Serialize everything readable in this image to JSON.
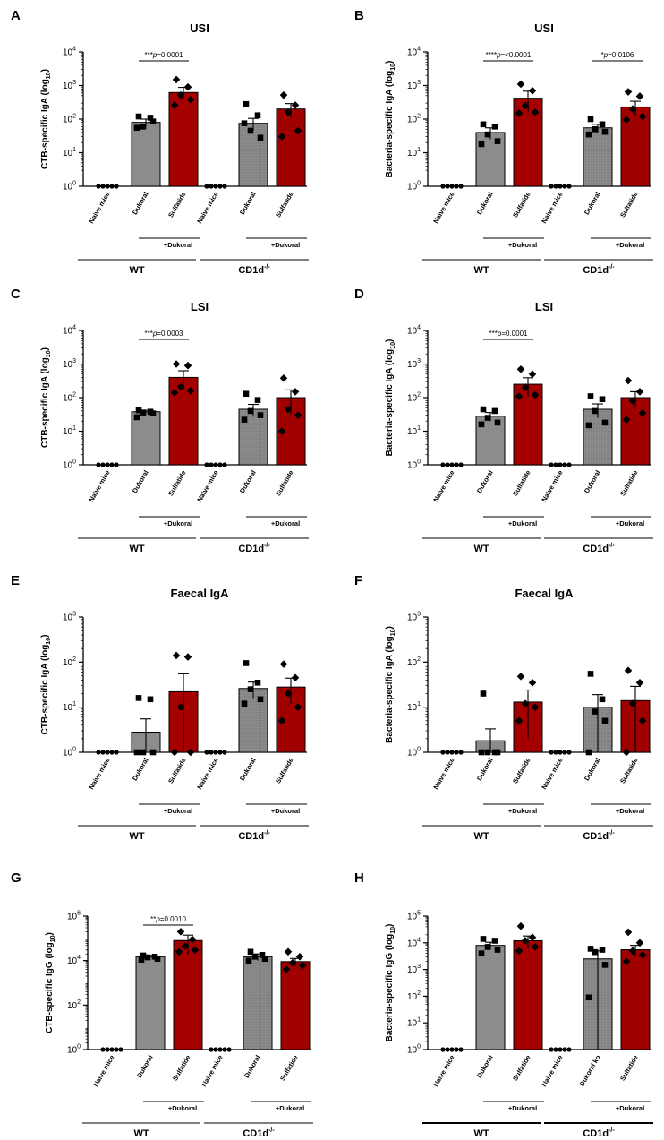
{
  "chart_data": [
    {
      "panel": "A",
      "type": "bar",
      "title": "USI",
      "ylabel": "CTB-specific IgA (log10)",
      "yscale": "log",
      "ylim": [
        1,
        10000
      ],
      "yticks": [
        {
          "base": "10",
          "exp": "0"
        },
        {
          "base": "10",
          "exp": "1"
        },
        {
          "base": "10",
          "exp": "2"
        },
        {
          "base": "10",
          "exp": "3"
        },
        {
          "base": "10",
          "exp": "4"
        }
      ],
      "categories": [
        "Naive mice",
        "Dukoral",
        "Sulfatide",
        "Naive mice",
        "Dukoral",
        "Sulfatide"
      ],
      "values": [
        1,
        80,
        620,
        1,
        75,
        200
      ],
      "errors": [
        0,
        20,
        260,
        0,
        30,
        90
      ],
      "points": [
        [
          1,
          1,
          1,
          1,
          1
        ],
        [
          120,
          110,
          60,
          85,
          55
        ],
        [
          1500,
          900,
          520,
          380,
          260
        ],
        [
          1,
          1,
          1,
          1,
          1
        ],
        [
          280,
          130,
          45,
          28,
          75
        ],
        [
          520,
          260,
          160,
          45,
          30
        ]
      ],
      "annotation": {
        "stars": "***",
        "text": "p=0.0001"
      },
      "combo_label": "+Dukoral",
      "groups": [
        "WT",
        "CD1d"
      ],
      "group_sup": "-/-"
    },
    {
      "panel": "B",
      "type": "bar",
      "title": "USI",
      "ylabel": "Bacteria-specific IgA (log10)",
      "yscale": "log",
      "ylim": [
        1,
        10000
      ],
      "yticks": [
        {
          "base": "10",
          "exp": "0"
        },
        {
          "base": "10",
          "exp": "1"
        },
        {
          "base": "10",
          "exp": "2"
        },
        {
          "base": "10",
          "exp": "3"
        },
        {
          "base": "10",
          "exp": "4"
        }
      ],
      "categories": [
        "Naive mice",
        "Dukoral",
        "Sulfatide",
        "Naive mice",
        "Dukoral",
        "Sulfatide"
      ],
      "values": [
        1,
        40,
        420,
        1,
        55,
        230
      ],
      "errors": [
        0,
        15,
        260,
        0,
        15,
        110
      ],
      "points": [
        [
          1,
          1,
          1,
          1,
          1
        ],
        [
          70,
          60,
          35,
          22,
          18
        ],
        [
          1100,
          700,
          250,
          160,
          150
        ],
        [
          1,
          1,
          1,
          1,
          1
        ],
        [
          100,
          70,
          50,
          42,
          35
        ],
        [
          650,
          480,
          200,
          120,
          95
        ]
      ],
      "annotation": {
        "stars": "****",
        "text": "p=<0.0001"
      },
      "annotation2": {
        "stars": "*",
        "text": "p=0.0106"
      },
      "combo_label": "+Dukoral",
      "groups": [
        "WT",
        "CD1d"
      ],
      "group_sup": "-/-"
    },
    {
      "panel": "C",
      "type": "bar",
      "title": "LSI",
      "ylabel": "CTB-specific IgA (log10)",
      "yscale": "log",
      "ylim": [
        1,
        10000
      ],
      "yticks": [
        {
          "base": "10",
          "exp": "0"
        },
        {
          "base": "10",
          "exp": "1"
        },
        {
          "base": "10",
          "exp": "2"
        },
        {
          "base": "10",
          "exp": "3"
        },
        {
          "base": "10",
          "exp": "4"
        }
      ],
      "categories": [
        "Naive mice",
        "Dukoral",
        "Sulfatide",
        "Naive mice",
        "Dukoral",
        "Sulfatide"
      ],
      "values": [
        1,
        38,
        400,
        1,
        45,
        100
      ],
      "errors": [
        0,
        4,
        230,
        0,
        18,
        70
      ],
      "points": [
        [
          1,
          1,
          1,
          1,
          1
        ],
        [
          42,
          38,
          36,
          34,
          26
        ],
        [
          1000,
          900,
          210,
          160,
          140
        ],
        [
          1,
          1,
          1,
          1,
          1
        ],
        [
          130,
          85,
          40,
          30,
          22
        ],
        [
          380,
          150,
          45,
          30,
          10
        ]
      ],
      "annotation": {
        "stars": "***",
        "text": "p=0.0003"
      },
      "combo_label": "+Dukoral",
      "groups": [
        "WT",
        "CD1d"
      ],
      "group_sup": "-/-"
    },
    {
      "panel": "D",
      "type": "bar",
      "title": "LSI",
      "ylabel": "Bacteria-specific IgA (log10)",
      "yscale": "log",
      "ylim": [
        1,
        10000
      ],
      "yticks": [
        {
          "base": "10",
          "exp": "0"
        },
        {
          "base": "10",
          "exp": "1"
        },
        {
          "base": "10",
          "exp": "2"
        },
        {
          "base": "10",
          "exp": "3"
        },
        {
          "base": "10",
          "exp": "4"
        }
      ],
      "categories": [
        "Naive mice",
        "Dukoral",
        "Sulfatide",
        "Naive mice",
        "Dukoral",
        "Sulfatide"
      ],
      "values": [
        1,
        28,
        250,
        1,
        45,
        100
      ],
      "errors": [
        0,
        8,
        140,
        0,
        20,
        50
      ],
      "points": [
        [
          1,
          1,
          1,
          1,
          1
        ],
        [
          45,
          40,
          25,
          18,
          16
        ],
        [
          700,
          500,
          200,
          120,
          110
        ],
        [
          1,
          1,
          1,
          1,
          1
        ],
        [
          110,
          90,
          40,
          18,
          15
        ],
        [
          320,
          150,
          80,
          35,
          22
        ]
      ],
      "annotation": {
        "stars": "***",
        "text": "p=0.0001"
      },
      "combo_label": "+Dukoral",
      "groups": [
        "WT",
        "CD1d"
      ],
      "group_sup": "-/-"
    },
    {
      "panel": "E",
      "type": "bar",
      "title": "Faecal IgA",
      "ylabel": "CTB-specific IgA (log10)",
      "yscale": "log",
      "ylim": [
        1,
        1000
      ],
      "yticks": [
        {
          "base": "10",
          "exp": "0"
        },
        {
          "base": "10",
          "exp": "1"
        },
        {
          "base": "10",
          "exp": "2"
        },
        {
          "base": "10",
          "exp": "3"
        }
      ],
      "categories": [
        "Naive mice",
        "Dukoral",
        "Sulfatide",
        "Naive mice",
        "Dukoral",
        "Sulfatide"
      ],
      "values": [
        1,
        2.8,
        22,
        1,
        26,
        28
      ],
      "errors": [
        0,
        2.7,
        33,
        0,
        10,
        16
      ],
      "points": [
        [
          1,
          1,
          1,
          1,
          1
        ],
        [
          16,
          15,
          1,
          1,
          1
        ],
        [
          140,
          130,
          10,
          1,
          1
        ],
        [
          1,
          1,
          1,
          1,
          1
        ],
        [
          95,
          35,
          25,
          15,
          12
        ],
        [
          90,
          45,
          20,
          10,
          5
        ]
      ],
      "combo_label": "+Dukoral",
      "groups": [
        "WT",
        "CD1d"
      ],
      "group_sup": "-/-"
    },
    {
      "panel": "F",
      "type": "bar",
      "title": "Faecal IgA",
      "ylabel": "Bacteria-specific IgA (log10)",
      "yscale": "log",
      "ylim": [
        1,
        1000
      ],
      "yticks": [
        {
          "base": "10",
          "exp": "0"
        },
        {
          "base": "10",
          "exp": "1"
        },
        {
          "base": "10",
          "exp": "2"
        },
        {
          "base": "10",
          "exp": "3"
        }
      ],
      "categories": [
        "Naive mice",
        "Dukoral",
        "Sulfatide",
        "Naive mice",
        "Dukoral",
        "Sulfatide"
      ],
      "values": [
        1,
        1.8,
        13,
        1,
        10,
        14
      ],
      "errors": [
        0,
        1.5,
        11,
        0,
        9,
        15
      ],
      "points": [
        [
          1,
          1,
          1,
          1,
          1
        ],
        [
          20,
          1,
          1,
          1,
          1
        ],
        [
          48,
          35,
          12,
          10,
          5
        ],
        [
          1,
          1,
          1,
          1,
          1
        ],
        [
          55,
          15,
          8,
          5,
          1
        ],
        [
          65,
          35,
          12,
          5,
          1
        ]
      ],
      "combo_label": "+Dukoral",
      "groups": [
        "WT",
        "CD1d"
      ],
      "group_sup": "-/-"
    },
    {
      "panel": "G",
      "type": "bar",
      "title": "",
      "ylabel": "CTB-specific IgG (log10)",
      "yscale": "log",
      "ylim": [
        1,
        1000000
      ],
      "yticks": [
        {
          "base": "10",
          "exp": "0"
        },
        {
          "base": "10",
          "exp": "2"
        },
        {
          "base": "10",
          "exp": "4"
        },
        {
          "base": "10",
          "exp": "6"
        }
      ],
      "categories": [
        "Naive mice",
        "Dukoral",
        "Sulfatide",
        "Naive mice",
        "Dukoral",
        "Sulfatide"
      ],
      "values": [
        1,
        15000,
        80000,
        1,
        15000,
        9000
      ],
      "errors": [
        0,
        2000,
        60000,
        0,
        5000,
        3500
      ],
      "points": [
        [
          1,
          1,
          1,
          1,
          1
        ],
        [
          17000,
          15000,
          14000,
          12000,
          11000
        ],
        [
          200000,
          90000,
          45000,
          30000,
          25000
        ],
        [
          1,
          1,
          1,
          1,
          1
        ],
        [
          25000,
          18000,
          15000,
          12000,
          10000
        ],
        [
          25000,
          15000,
          8000,
          6000,
          4000
        ]
      ],
      "annotation": {
        "stars": "**",
        "text": "p=0.0010"
      },
      "combo_label": "+Dukoral",
      "groups": [
        "WT",
        "CD1d"
      ],
      "group_sup": "-/-"
    },
    {
      "panel": "H",
      "type": "bar",
      "title": "",
      "ylabel": "Bacteria-specific IgG (log10)",
      "yscale": "log",
      "ylim": [
        1,
        100000
      ],
      "yticks": [
        {
          "base": "10",
          "exp": "0"
        },
        {
          "base": "10",
          "exp": "1"
        },
        {
          "base": "10",
          "exp": "2"
        },
        {
          "base": "10",
          "exp": "3"
        },
        {
          "base": "10",
          "exp": "4"
        },
        {
          "base": "10",
          "exp": "5"
        }
      ],
      "categories": [
        "Naive mice",
        "Dukoral",
        "Sulfatide",
        "Naive mice",
        "Dukoral ko",
        "Sulfatide"
      ],
      "values": [
        1,
        8000,
        12000,
        1,
        2500,
        5500
      ],
      "errors": [
        0,
        2500,
        6000,
        0,
        2500,
        2500
      ],
      "points": [
        [
          1,
          1,
          1,
          1,
          1
        ],
        [
          14000,
          12000,
          7000,
          5500,
          4000
        ],
        [
          42000,
          16000,
          12000,
          7000,
          5000
        ],
        [
          1,
          1,
          1,
          1,
          1
        ],
        [
          6000,
          5500,
          4500,
          1500,
          90
        ],
        [
          25000,
          10000,
          5000,
          3500,
          2000
        ]
      ],
      "combo_label": "+Dukoral",
      "groups": [
        "WT",
        "CD1d"
      ],
      "group_sup": "-/-"
    }
  ],
  "colors": {
    "gray_bar": "#8c8c8c",
    "red_bar": "#a50000",
    "axis": "#000000"
  }
}
